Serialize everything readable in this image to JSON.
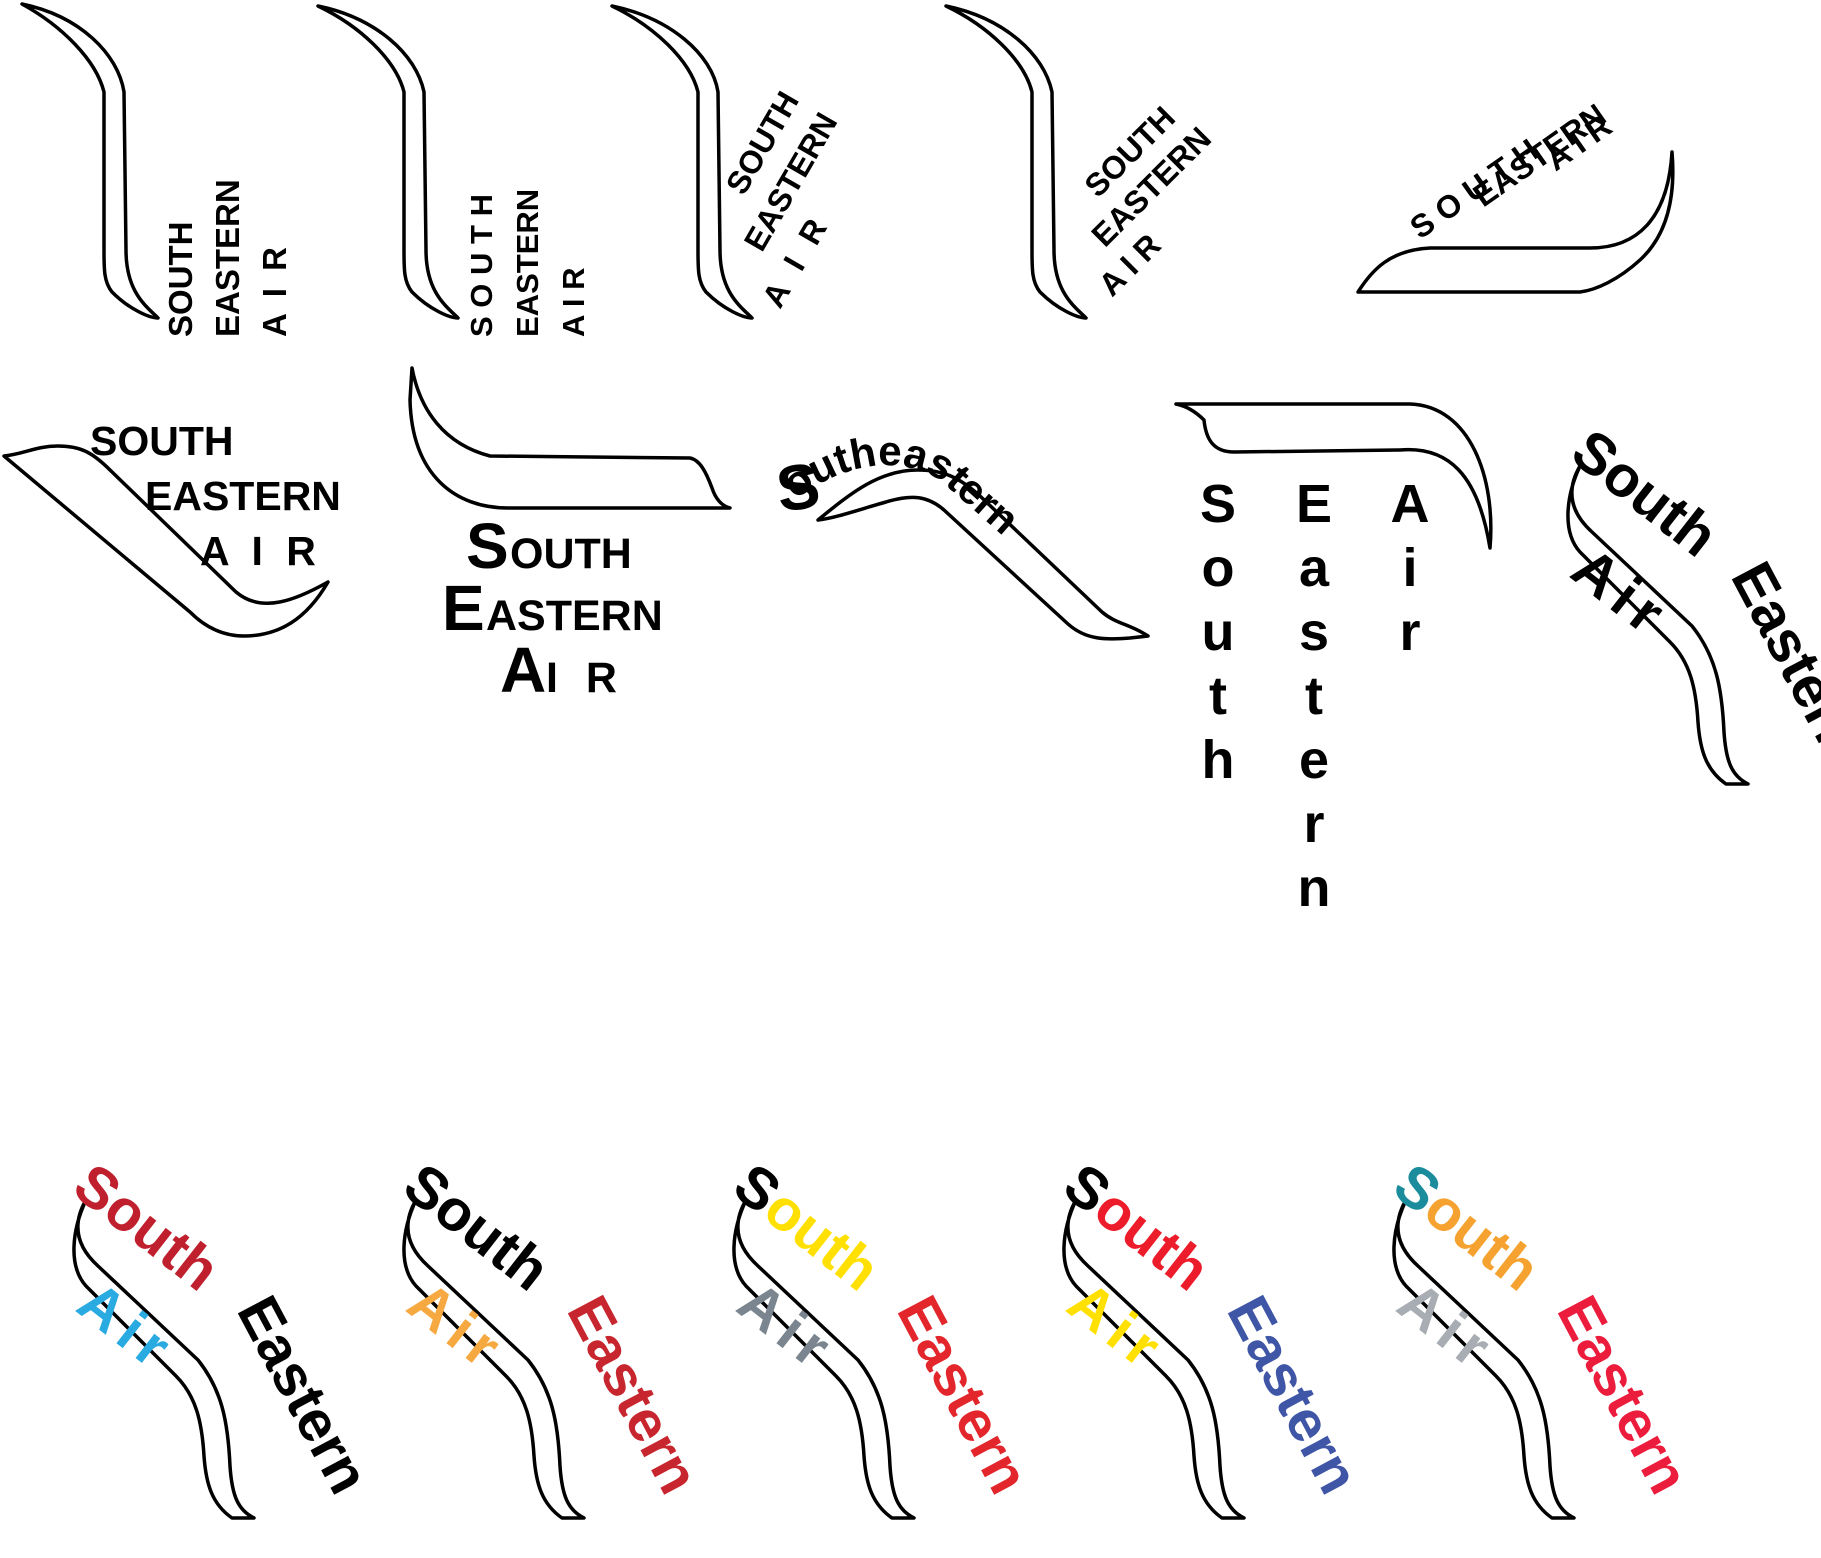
{
  "concepts": [
    {
      "id": "c1",
      "lines": [
        "SOUTH",
        "EASTERN",
        "A I R"
      ]
    },
    {
      "id": "c2",
      "lines": [
        "S O U T H",
        "EASTERN",
        "A   I   R"
      ]
    },
    {
      "id": "c3",
      "lines": [
        "SOUTH",
        "EASTERN",
        "A I R"
      ]
    },
    {
      "id": "c4",
      "lines": [
        "SOUTH",
        "EASTERN",
        "A      I      R"
      ]
    },
    {
      "id": "c5",
      "lines": [
        "S O U T H",
        "EASTERN",
        "A    I    R"
      ]
    },
    {
      "id": "c6",
      "lines": [
        "SOUTH",
        "EASTERN",
        "A I R"
      ]
    },
    {
      "id": "c7",
      "lines": [
        "S",
        "OUTH",
        "E",
        "ASTERN",
        "A",
        "I R"
      ]
    },
    {
      "id": "c8",
      "first": "S",
      "rest": "outheastern"
    },
    {
      "id": "c9",
      "columns": [
        "South",
        "Eastern",
        "Air"
      ]
    },
    {
      "id": "c10",
      "words": [
        "South",
        "Eastern",
        "Air"
      ]
    }
  ],
  "color_variants": [
    {
      "id": "v1",
      "words": [
        "South",
        "Eastern",
        "Air"
      ],
      "colors": {
        "s": "#c0202e",
        "outh": "#c0202e",
        "eastern": "#000000",
        "air": "#29aae1"
      }
    },
    {
      "id": "v2",
      "words": [
        "South",
        "Eastern",
        "Air"
      ],
      "colors": {
        "s": "#000000",
        "outh": "#000000",
        "eastern": "#c8262f",
        "air": "#f7a941"
      }
    },
    {
      "id": "v3",
      "words": [
        "South",
        "Eastern",
        "Air"
      ],
      "colors": {
        "s": "#000000",
        "outh": "#ffe000",
        "eastern": "#e2262c",
        "air": "#7a8590"
      }
    },
    {
      "id": "v4",
      "words": [
        "South",
        "Eastern",
        "Air"
      ],
      "colors": {
        "s": "#000000",
        "outh": "#ec1c2b",
        "eastern": "#3f56a6",
        "air": "#ffe000"
      }
    },
    {
      "id": "v5",
      "words": [
        "South",
        "Eastern",
        "Air"
      ],
      "colors": {
        "s": "#1a8c9c",
        "outh": "#f5a230",
        "eastern": "#ec1c3c",
        "air": "#a7adb3"
      }
    }
  ]
}
